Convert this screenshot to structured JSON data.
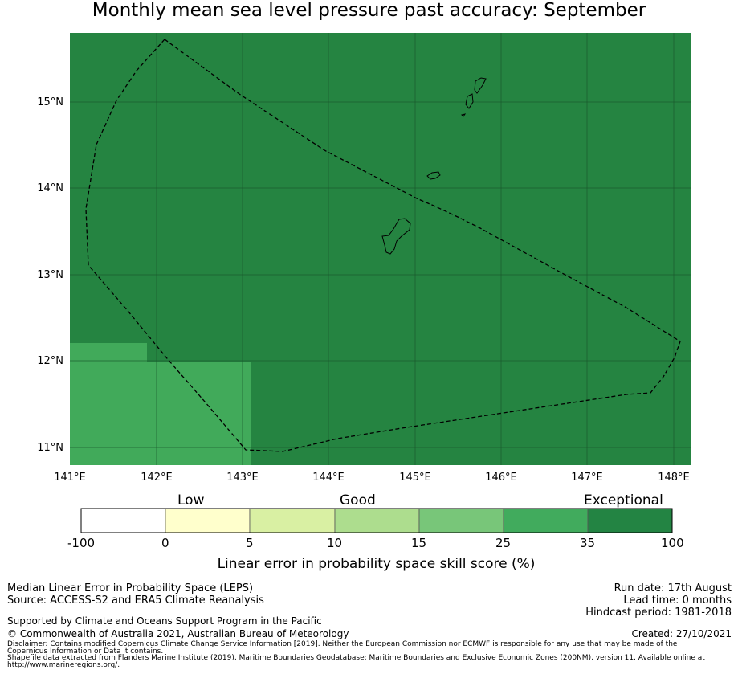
{
  "title": "Monthly mean sea level pressure past accuracy: September",
  "map": {
    "lon_labels": [
      "141°E",
      "142°E",
      "143°E",
      "144°E",
      "145°E",
      "146°E",
      "147°E",
      "148°E"
    ],
    "lat_labels": [
      "15°N",
      "14°N",
      "13°N",
      "12°N",
      "11°N"
    ],
    "colors": {
      "exceptional": "#258441",
      "high": "#41aa5a"
    },
    "eez_boundary_style": "dashed",
    "islands": [
      "guam-island",
      "rota-island",
      "aguijan-island",
      "tinian-island",
      "saipan-island"
    ]
  },
  "colorbar": {
    "categories": [
      "Low",
      "Good",
      "Exceptional"
    ],
    "ticks": [
      "-100",
      "0",
      "5",
      "10",
      "15",
      "25",
      "35",
      "100"
    ],
    "colors": [
      "#ffffff",
      "#ffffcc",
      "#d9f0a3",
      "#addd8e",
      "#78c679",
      "#41ab5d",
      "#238443"
    ],
    "label": "Linear error in probability space skill score (%)"
  },
  "footer": {
    "method": "Median Linear Error in Probability Space (LEPS)",
    "source": "Source: ACCESS-S2 and ERA5 Climate Reanalysis",
    "support": "Supported by Climate and Oceans Support Program in the Pacific",
    "copyright": "© Commonwealth of Australia 2021, Australian Bureau of Meteorology",
    "disclaimer_1": "Disclaimer: Contains modified Copernicus Climate Change Service Information [2019]. Neither the European Commission nor ECMWF is responsible for any use that may be made of the",
    "disclaimer_2": "Copernicus Information or Data it contains.",
    "shapefile_1": "Shapefile data extracted from Flanders Marine Institute (2019), Maritime Boundaries Geodatabase: Maritime Boundaries and Exclusive Economic Zones (200NM), version 11. Available online at",
    "shapefile_2": "http://www.marineregions.org/.",
    "run_date": "Run date: 17th August",
    "lead_time": "Lead time: 0 months",
    "hindcast": "Hindcast period: 1981-2018",
    "created": "Created: 27/10/2021"
  }
}
